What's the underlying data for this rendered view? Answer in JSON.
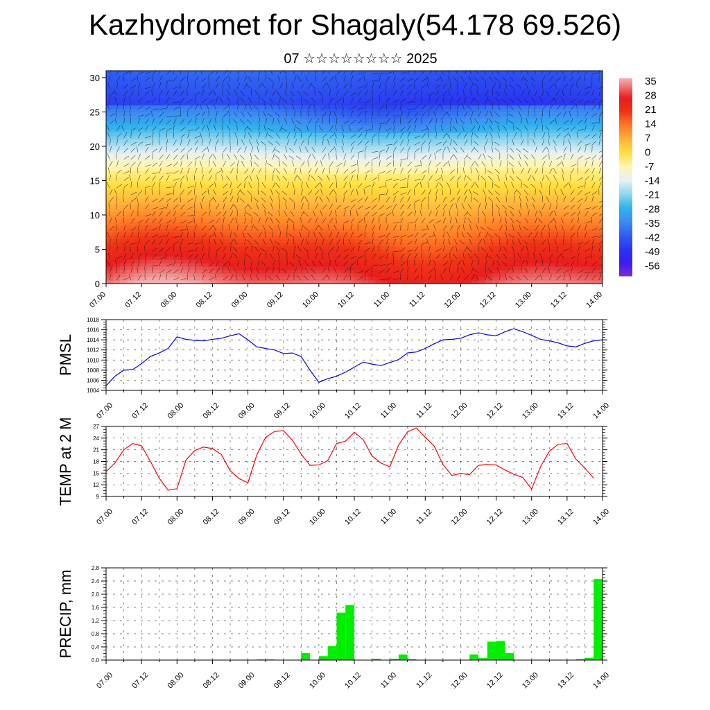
{
  "title": "Kazhydromet for Shagaly(54.178 69.526)",
  "subtitle": "07 ☆☆☆☆☆☆☆☆ 2025",
  "time_ticks": [
    "07.00",
    "07.12",
    "08.00",
    "08.12",
    "09.00",
    "09.12",
    "10.00",
    "10.12",
    "11.00",
    "11.12",
    "12.00",
    "12.12",
    "13.00",
    "13.12",
    "14.00"
  ],
  "chart_data": [
    {
      "type": "heatmap",
      "title": "",
      "xlabel": "",
      "ylabel": "",
      "ylim": [
        0,
        31
      ],
      "yticks": [
        0,
        5,
        10,
        15,
        20,
        25,
        30
      ],
      "colorbar_labels": [
        "35",
        "28",
        "21",
        "14",
        "7",
        "0",
        "-7",
        "-14",
        "-21",
        "-28",
        "-35",
        "-42",
        "-49",
        "-56"
      ],
      "colorbar_range": [
        -63,
        38
      ],
      "colorbar_stops": [
        {
          "v": -63,
          "c": "#7a2bd9"
        },
        {
          "v": -56,
          "c": "#3a1cf0"
        },
        {
          "v": -49,
          "c": "#2a36f0"
        },
        {
          "v": -42,
          "c": "#2f5ff2"
        },
        {
          "v": -35,
          "c": "#3f8cf2"
        },
        {
          "v": -28,
          "c": "#2fb3ee"
        },
        {
          "v": -21,
          "c": "#8fd6ef"
        },
        {
          "v": -14,
          "c": "#e8f1f4"
        },
        {
          "v": -7,
          "c": "#fff6b0"
        },
        {
          "v": 0,
          "c": "#ffe040"
        },
        {
          "v": 7,
          "c": "#ffb23a"
        },
        {
          "v": 14,
          "c": "#ff7a25"
        },
        {
          "v": 21,
          "c": "#f03416"
        },
        {
          "v": 28,
          "c": "#e81d1d"
        },
        {
          "v": 38,
          "c": "#f3b0b0"
        }
      ]
    },
    {
      "type": "line",
      "ylabel": "PMSL",
      "ylim": [
        1004,
        1018
      ],
      "yticks": [
        1004,
        1006,
        1008,
        1010,
        1012,
        1014,
        1016,
        1018
      ],
      "color": "#0000ff",
      "x": [
        0,
        3,
        6,
        9,
        12,
        15,
        18,
        21,
        24,
        27,
        30,
        33,
        36,
        39,
        42,
        45,
        48,
        51,
        54,
        57,
        60,
        63,
        66,
        69,
        72,
        75,
        78,
        81,
        84,
        87,
        90,
        93,
        96,
        99,
        102,
        105,
        108,
        111,
        114,
        117,
        120,
        123,
        126,
        129,
        132,
        135,
        138,
        141,
        144,
        147,
        150,
        153,
        156,
        159,
        162,
        165,
        168
      ],
      "values": [
        1004.9,
        1006.8,
        1008.0,
        1008.1,
        1009.3,
        1010.7,
        1011.4,
        1012.3,
        1014.6,
        1014.1,
        1013.9,
        1013.8,
        1014.1,
        1014.3,
        1014.8,
        1015.2,
        1014.0,
        1012.6,
        1012.3,
        1012.0,
        1011.3,
        1011.4,
        1010.7,
        1008.0,
        1005.6,
        1006.3,
        1006.8,
        1007.6,
        1008.6,
        1009.6,
        1009.2,
        1008.9,
        1009.5,
        1010.1,
        1011.4,
        1011.6,
        1012.3,
        1013.2,
        1014.0,
        1014.1,
        1014.3,
        1015.0,
        1015.4,
        1015.0,
        1014.8,
        1015.6,
        1016.2,
        1015.6,
        1014.9,
        1014.1,
        1013.8,
        1013.4,
        1012.8,
        1012.6,
        1013.3,
        1013.8,
        1014.0
      ]
    },
    {
      "type": "line",
      "ylabel": "TEMP at 2 M",
      "ylim": [
        9,
        27
      ],
      "yticks": [
        9,
        12,
        15,
        18,
        21,
        24,
        27
      ],
      "color": "#ff0000",
      "x": [
        0,
        3,
        6,
        9,
        12,
        15,
        18,
        21,
        24,
        27,
        30,
        33,
        36,
        39,
        42,
        45,
        48,
        51,
        54,
        57,
        60,
        63,
        66,
        69,
        72,
        75,
        78,
        81,
        84,
        87,
        90,
        93,
        96,
        99,
        102,
        105,
        108,
        111,
        114,
        117,
        120,
        123,
        126,
        129,
        132,
        135,
        138,
        141,
        144,
        147,
        150,
        153,
        156,
        159,
        162,
        165
      ],
      "values": [
        15.4,
        17.6,
        21.0,
        22.6,
        22.0,
        18.0,
        13.7,
        10.6,
        11.0,
        18.3,
        20.8,
        21.7,
        21.3,
        19.8,
        15.6,
        13.6,
        12.5,
        19.7,
        24.2,
        25.7,
        25.9,
        23.5,
        19.9,
        17.0,
        17.1,
        18.2,
        22.6,
        23.2,
        25.5,
        23.6,
        19.4,
        17.6,
        16.6,
        22.2,
        25.6,
        26.6,
        24.2,
        22.0,
        17.2,
        14.4,
        14.9,
        14.6,
        17.0,
        17.2,
        17.1,
        15.8,
        14.7,
        13.9,
        10.9,
        16.6,
        20.6,
        22.4,
        22.6,
        18.6,
        16.3,
        13.7
      ]
    },
    {
      "type": "bar",
      "ylabel": "PRECIP, mm",
      "ylim": [
        0,
        2.8
      ],
      "yticks": [
        "0.0",
        "0.4",
        "0.8",
        "1.2",
        "1.6",
        "2.0",
        "2.4",
        "2.8"
      ],
      "color": "#00ee00",
      "x": [
        54,
        57,
        69,
        75,
        78,
        81,
        84,
        93,
        99,
        102,
        105,
        126,
        129,
        132,
        135,
        138,
        162,
        165,
        168
      ],
      "values": [
        0.02,
        0.02,
        0.21,
        0.12,
        0.42,
        1.44,
        1.67,
        0.04,
        0.04,
        0.17,
        0.03,
        0.17,
        0.06,
        0.56,
        0.58,
        0.21,
        0.03,
        0.07,
        2.46
      ],
      "bar_width": 3
    }
  ]
}
